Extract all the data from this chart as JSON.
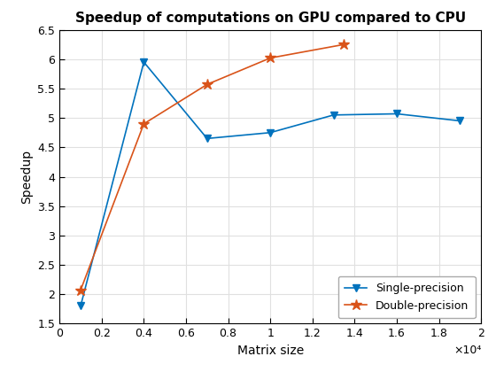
{
  "title": "Speedup of computations on GPU compared to CPU",
  "xlabel": "Matrix size",
  "ylabel": "Speedup",
  "xlim": [
    0,
    20000
  ],
  "ylim": [
    1.5,
    6.5
  ],
  "xticks": [
    0,
    2000,
    4000,
    6000,
    8000,
    10000,
    12000,
    14000,
    16000,
    18000,
    20000
  ],
  "xtick_labels": [
    "0",
    "0.2",
    "0.4",
    "0.6",
    "0.8",
    "1",
    "1.2",
    "1.4",
    "1.6",
    "1.8",
    "2"
  ],
  "x_scale_label": "×10⁴",
  "yticks": [
    1.5,
    2.0,
    2.5,
    3.0,
    3.5,
    4.0,
    4.5,
    5.0,
    5.5,
    6.0,
    6.5
  ],
  "ytick_labels": [
    "1.5",
    "2",
    "2.5",
    "3",
    "3.5",
    "4",
    "4.5",
    "5",
    "5.5",
    "6",
    "6.5"
  ],
  "single_x": [
    1000,
    4000,
    7000,
    10000,
    13000,
    16000,
    19000
  ],
  "single_y": [
    1.8,
    5.95,
    4.65,
    4.75,
    5.05,
    5.07,
    4.95
  ],
  "double_x": [
    1000,
    4000,
    7000,
    10000,
    13500
  ],
  "double_y": [
    2.07,
    4.9,
    5.57,
    6.02,
    6.25
  ],
  "single_color": "#0072BD",
  "double_color": "#D95319",
  "single_label": "Single-precision",
  "double_label": "Double-precision",
  "legend_loc": "lower right",
  "grid_color": "#e0e0e0",
  "background_color": "#ffffff",
  "title_fontsize": 11,
  "label_fontsize": 10,
  "tick_fontsize": 9,
  "legend_fontsize": 9
}
